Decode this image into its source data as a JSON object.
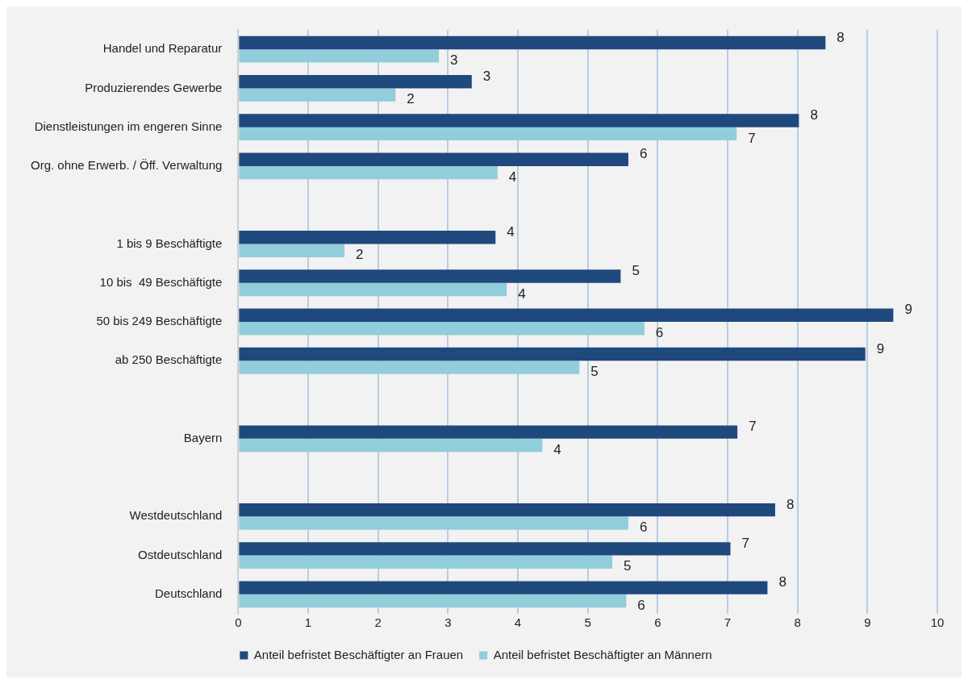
{
  "chart_data": {
    "type": "bar",
    "orientation": "horizontal",
    "categories": [
      "Handel und Reparatur",
      "Produzierendes Gewerbe",
      "Dienstleistungen im engeren Sinne",
      "Org. ohne Erwerb. / Öff. Verwaltung",
      null,
      "1 bis 9 Beschäftigte",
      "10 bis  49 Beschäftigte",
      "50 bis 249 Beschäftigte",
      "ab 250 Beschäftigte",
      null,
      "Bayern",
      null,
      "Westdeutschland",
      "Ostdeutschland",
      "Deutschland"
    ],
    "series": [
      {
        "name": "Anteil befristet Beschäftigter an Frauen",
        "color": "#1f497d",
        "values": [
          8.4,
          3.34,
          8.02,
          5.58,
          null,
          3.68,
          5.47,
          9.37,
          8.97,
          null,
          7.14,
          null,
          7.68,
          7.04,
          7.57
        ],
        "value_labels": [
          "8",
          "3",
          "8",
          "6",
          null,
          "4",
          "5",
          "9",
          "9",
          null,
          "7",
          null,
          "8",
          "7",
          "8"
        ]
      },
      {
        "name": "Anteil befristet Beschäftigter an Männern",
        "color": "#92cddc",
        "values": [
          2.87,
          2.25,
          7.13,
          3.71,
          null,
          1.52,
          3.84,
          5.81,
          4.88,
          null,
          4.35,
          null,
          5.58,
          5.35,
          5.55
        ],
        "value_labels": [
          "3",
          "2",
          "7",
          "4",
          null,
          "2",
          "4",
          "6",
          "5",
          null,
          "4",
          null,
          "6",
          "5",
          "6"
        ]
      }
    ],
    "xlim": [
      0,
      10
    ],
    "xticks": [
      0,
      1,
      2,
      3,
      4,
      5,
      6,
      7,
      8,
      9,
      10
    ],
    "grid": "x",
    "legend": "bottom"
  }
}
